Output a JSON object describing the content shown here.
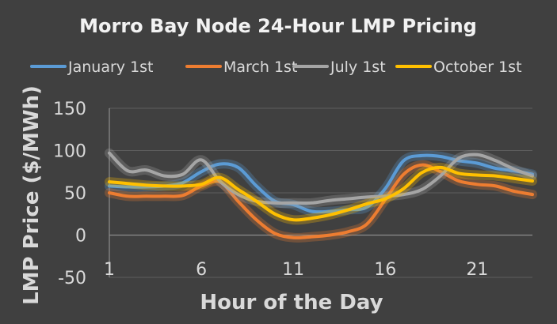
{
  "chart_data": {
    "type": "line",
    "title": "Morro Bay Node 24-Hour LMP Pricing",
    "xlabel": "Hour of the Day",
    "ylabel": "LMP Price ($/MWh)",
    "x": [
      1,
      2,
      3,
      4,
      5,
      6,
      7,
      8,
      9,
      10,
      11,
      12,
      13,
      14,
      15,
      16,
      17,
      18,
      19,
      20,
      21,
      22,
      23,
      24
    ],
    "x_ticks": [
      1,
      6,
      11,
      16,
      21
    ],
    "y_ticks": [
      150,
      100,
      50,
      0,
      -50
    ],
    "xlim": [
      1,
      24
    ],
    "ylim": [
      -50,
      150
    ],
    "grid": "horizontal",
    "legend": "top",
    "series": [
      {
        "name": "January 1st",
        "color": "#5b9bd5",
        "values": [
          58,
          57,
          57,
          58,
          62,
          75,
          84,
          80,
          58,
          40,
          36,
          28,
          28,
          30,
          33,
          55,
          88,
          94,
          93,
          88,
          85,
          79,
          76,
          72
        ]
      },
      {
        "name": "March 1st",
        "color": "#ed7d31",
        "values": [
          50,
          46,
          46,
          46,
          47,
          58,
          63,
          40,
          18,
          2,
          -3,
          -2,
          0,
          4,
          13,
          42,
          72,
          83,
          75,
          64,
          60,
          58,
          52,
          48
        ]
      },
      {
        "name": "July 1st",
        "color": "#a5a5a5",
        "values": [
          97,
          76,
          77,
          70,
          72,
          89,
          64,
          48,
          40,
          38,
          38,
          38,
          41,
          43,
          45,
          46,
          48,
          54,
          70,
          91,
          95,
          88,
          78,
          70
        ]
      },
      {
        "name": "October 1st",
        "color": "#ffc000",
        "values": [
          63,
          61,
          59,
          58,
          58,
          60,
          68,
          54,
          40,
          25,
          18,
          20,
          24,
          30,
          37,
          43,
          55,
          74,
          80,
          73,
          71,
          70,
          67,
          64
        ]
      }
    ]
  }
}
